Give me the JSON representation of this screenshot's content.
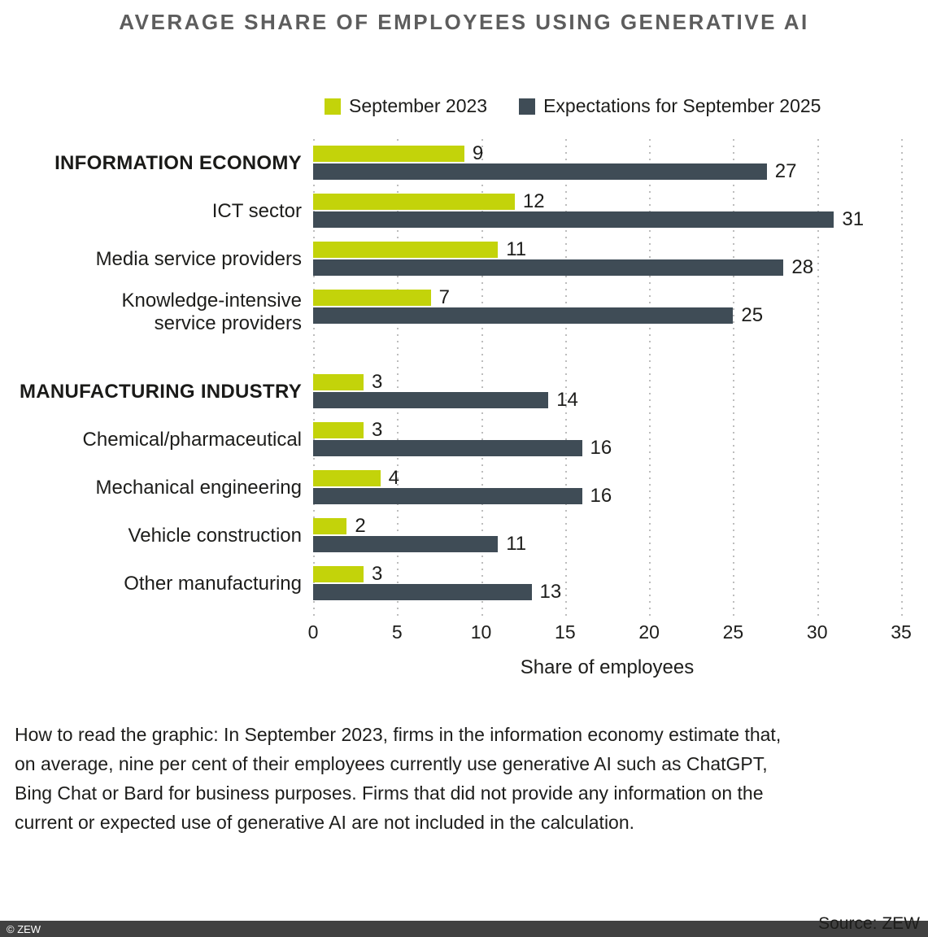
{
  "title": "AVERAGE SHARE OF EMPLOYEES USING GENERATIVE AI",
  "chart_data": {
    "type": "bar",
    "orientation": "horizontal",
    "title": "AVERAGE SHARE OF EMPLOYEES USING GENERATIVE AI",
    "xlabel": "Share of employees",
    "ylabel": "",
    "xlim": [
      0,
      35
    ],
    "xticks": [
      0,
      5,
      10,
      15,
      20,
      25,
      30,
      35
    ],
    "grid": "dotted-vertical",
    "legend_position": "top",
    "categories": [
      {
        "label": "INFORMATION ECONOMY",
        "bold": true
      },
      {
        "label": "ICT sector",
        "bold": false
      },
      {
        "label": "Media service providers",
        "bold": false
      },
      {
        "label": "Knowledge-intensive\nservice providers",
        "bold": false
      },
      {
        "label": "MANUFACTURING INDUSTRY",
        "bold": true,
        "group_start": true
      },
      {
        "label": "Chemical/pharmaceutical",
        "bold": false
      },
      {
        "label": "Mechanical engineering",
        "bold": false
      },
      {
        "label": "Vehicle construction",
        "bold": false
      },
      {
        "label": "Other manufacturing",
        "bold": false
      }
    ],
    "series": [
      {
        "name": "September 2023",
        "color": "#c3d30a",
        "values": [
          9,
          12,
          11,
          7,
          3,
          3,
          4,
          2,
          3
        ]
      },
      {
        "name": "Expectations for September 2025",
        "color": "#3f4c56",
        "values": [
          27,
          31,
          28,
          25,
          14,
          16,
          16,
          11,
          13
        ]
      }
    ]
  },
  "colors": {
    "series_2023": "#c3d30a",
    "series_2025": "#3f4c56",
    "title_gray": "#5d5d5d",
    "gridline": "#bdbdbd",
    "footer_bar": "#414141",
    "text": "#1d1d1b"
  },
  "note": "How to read the graphic: In September 2023, firms in the information economy estimate that, on average, nine per cent of their employees currently use generative AI such as ChatGPT, Bing Chat or Bard for business purposes. Firms that did not provide any information on the current or expected use of generative AI are not included in the calculation.",
  "footer": {
    "copyright": "© ZEW",
    "source": "Source: ZEW"
  }
}
